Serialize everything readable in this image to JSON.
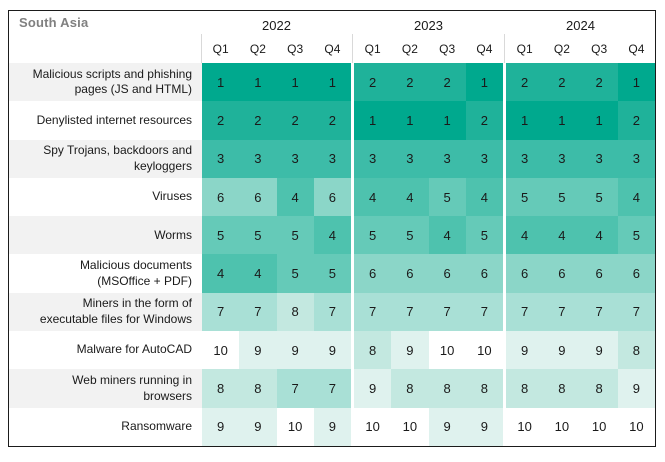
{
  "header": {
    "region_label": "South Asia",
    "years": [
      "2022",
      "2023",
      "2024"
    ],
    "quarters": [
      "Q1",
      "Q2",
      "Q3",
      "Q4"
    ]
  },
  "colors": {
    "frame_border": "#1b1b1b",
    "label_alt_row_bg": "#f2f2f2",
    "region_label_text": "#808080",
    "cell_text": "#1a1a1a",
    "header_divider": "#d9d9d9"
  },
  "chart_data": {
    "type": "heatmap",
    "title": "South Asia",
    "x_groups": [
      "2022",
      "2023",
      "2024"
    ],
    "columns": [
      "2022 Q1",
      "2022 Q2",
      "2022 Q3",
      "2022 Q4",
      "2023 Q1",
      "2023 Q2",
      "2023 Q3",
      "2023 Q4",
      "2024 Q1",
      "2024 Q2",
      "2024 Q3",
      "2024 Q4"
    ],
    "value_range": [
      1,
      10
    ],
    "legend_position": "none",
    "rows": [
      {
        "label": "Malicious scripts and phishing pages (JS and HTML)",
        "values": [
          1,
          1,
          1,
          1,
          2,
          2,
          2,
          1,
          2,
          2,
          2,
          1
        ]
      },
      {
        "label": "Denylisted internet resources",
        "values": [
          2,
          2,
          2,
          2,
          1,
          1,
          1,
          2,
          1,
          1,
          1,
          2
        ]
      },
      {
        "label": "Spy Trojans, backdoors and keyloggers",
        "values": [
          3,
          3,
          3,
          3,
          3,
          3,
          3,
          3,
          3,
          3,
          3,
          3
        ]
      },
      {
        "label": "Viruses",
        "values": [
          6,
          6,
          4,
          6,
          4,
          4,
          5,
          4,
          5,
          5,
          5,
          4
        ]
      },
      {
        "label": "Worms",
        "values": [
          5,
          5,
          5,
          4,
          5,
          5,
          4,
          5,
          4,
          4,
          4,
          5
        ]
      },
      {
        "label": "Malicious documents (MSOffice + PDF)",
        "values": [
          4,
          4,
          5,
          5,
          6,
          6,
          6,
          6,
          6,
          6,
          6,
          6
        ]
      },
      {
        "label": "Miners in the form of executable files for Windows",
        "values": [
          7,
          7,
          8,
          7,
          7,
          7,
          7,
          7,
          7,
          7,
          7,
          7
        ]
      },
      {
        "label": "Malware for AutoCAD",
        "values": [
          10,
          9,
          9,
          9,
          8,
          9,
          10,
          10,
          9,
          9,
          9,
          8
        ]
      },
      {
        "label": "Web miners running in browsers",
        "values": [
          8,
          8,
          7,
          7,
          9,
          8,
          8,
          8,
          8,
          8,
          8,
          9
        ]
      },
      {
        "label": "Ransomware",
        "values": [
          9,
          9,
          10,
          9,
          10,
          10,
          9,
          9,
          10,
          10,
          10,
          10
        ]
      }
    ],
    "rank_colors": {
      "1": "#00A98E",
      "2": "#1FB29A",
      "3": "#3DBCA8",
      "4": "#4EC2AE",
      "5": "#65CAB8",
      "6": "#8BD6C8",
      "7": "#A9E0D6",
      "8": "#C3E8E0",
      "9": "#DFF2EE",
      "10": "#FFFFFF"
    }
  }
}
